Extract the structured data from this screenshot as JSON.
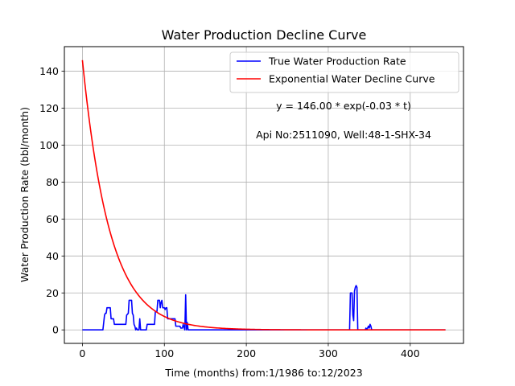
{
  "chart_data": {
    "type": "line",
    "title": "Water Production Decline Curve",
    "xlabel": "Time (months) from:1/1986 to:12/2023",
    "ylabel": "Water Production Rate (bbl/month)",
    "xlim": [
      -22,
      465
    ],
    "ylim": [
      -7.3,
      153.3
    ],
    "xticks": [
      0,
      100,
      200,
      300,
      400
    ],
    "yticks": [
      0,
      20,
      40,
      60,
      80,
      100,
      120,
      140
    ],
    "grid": true,
    "legend_position": "top-right",
    "annotations": [
      {
        "text": "y = 146.00 * exp(-0.03 * t)",
        "x": 318,
        "y": 120
      },
      {
        "text": "Api No:2511090, Well:48-1-SHX-34",
        "x": 318,
        "y": 104
      }
    ],
    "series": [
      {
        "name": "True Water Production Rate",
        "color": "#0000ff",
        "kind": "stepped",
        "points": [
          [
            0,
            0
          ],
          [
            25,
            0
          ],
          [
            26,
            4
          ],
          [
            27,
            8
          ],
          [
            28,
            9
          ],
          [
            29,
            9
          ],
          [
            30,
            12
          ],
          [
            32,
            12
          ],
          [
            34,
            12
          ],
          [
            35,
            6
          ],
          [
            36,
            6
          ],
          [
            38,
            6
          ],
          [
            39,
            3
          ],
          [
            41,
            3
          ],
          [
            53,
            3
          ],
          [
            54,
            8
          ],
          [
            56,
            9
          ],
          [
            57,
            16
          ],
          [
            60,
            16
          ],
          [
            61,
            9
          ],
          [
            62,
            8
          ],
          [
            63,
            3
          ],
          [
            64,
            2
          ],
          [
            65,
            0
          ],
          [
            66,
            1
          ],
          [
            67,
            0
          ],
          [
            69,
            0
          ],
          [
            70,
            6
          ],
          [
            71,
            0
          ],
          [
            78,
            0
          ],
          [
            79,
            3
          ],
          [
            88,
            3
          ],
          [
            89,
            10
          ],
          [
            91,
            10
          ],
          [
            92,
            16
          ],
          [
            94,
            16
          ],
          [
            95,
            12
          ],
          [
            96,
            15
          ],
          [
            97,
            16
          ],
          [
            98,
            12
          ],
          [
            100,
            12
          ],
          [
            101,
            11
          ],
          [
            102,
            12
          ],
          [
            103,
            12
          ],
          [
            104,
            6
          ],
          [
            113,
            6
          ],
          [
            114,
            2
          ],
          [
            118,
            2
          ],
          [
            119,
            2
          ],
          [
            120,
            1
          ],
          [
            122,
            1
          ],
          [
            123,
            3
          ],
          [
            125,
            0
          ],
          [
            126,
            19
          ],
          [
            127,
            0
          ],
          [
            128,
            4
          ],
          [
            129,
            0
          ],
          [
            326,
            0
          ],
          [
            327,
            20
          ],
          [
            329,
            20
          ],
          [
            330,
            8
          ],
          [
            331,
            5
          ],
          [
            332,
            21
          ],
          [
            333,
            23
          ],
          [
            334,
            24
          ],
          [
            335,
            23
          ],
          [
            336,
            0
          ],
          [
            345,
            0
          ],
          [
            346,
            1
          ],
          [
            347,
            0
          ],
          [
            349,
            2
          ],
          [
            350,
            1
          ],
          [
            351,
            3
          ],
          [
            352,
            2
          ],
          [
            353,
            0
          ],
          [
            443,
            0
          ]
        ]
      },
      {
        "name": "Exponential Water Decline Curve",
        "color": "#ff0000",
        "kind": "exponential",
        "a": 146.0,
        "b": 0.03,
        "x_range": [
          0,
          443
        ]
      }
    ]
  }
}
